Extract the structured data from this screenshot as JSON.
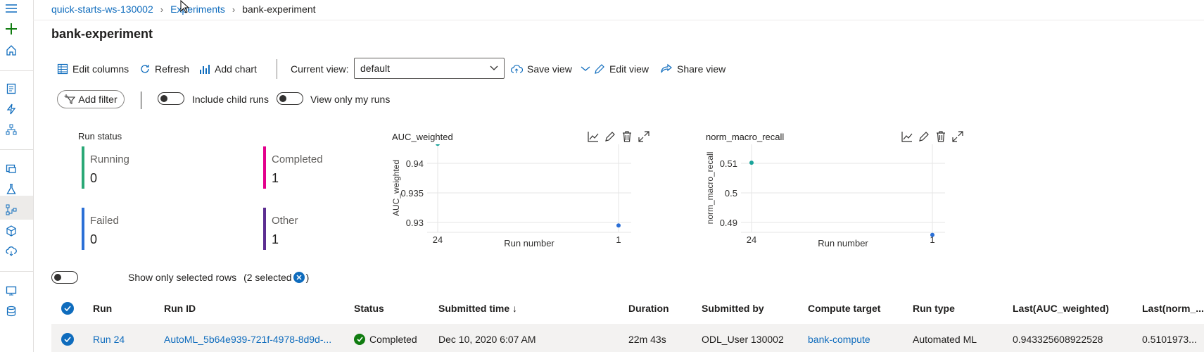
{
  "breadcrumb": {
    "workspace": "quick-starts-ws-130002",
    "section": "Experiments",
    "current": "bank-experiment"
  },
  "page": {
    "title": "bank-experiment"
  },
  "toolbar": {
    "edit_columns": "Edit columns",
    "refresh": "Refresh",
    "add_chart": "Add chart",
    "current_view_label": "Current view:",
    "current_view_value": "default",
    "save_view": "Save view",
    "edit_view": "Edit view",
    "share_view": "Share view"
  },
  "filters": {
    "add_filter": "Add filter",
    "include_child_runs": "Include child runs",
    "view_only_my_runs": "View only my runs"
  },
  "run_status": {
    "title": "Run status",
    "tiles": [
      {
        "label": "Running",
        "count": "0",
        "color": "#2aa876"
      },
      {
        "label": "Completed",
        "count": "1",
        "color": "#e3008c"
      },
      {
        "label": "Failed",
        "count": "0",
        "color": "#2b6fd6"
      },
      {
        "label": "Other",
        "count": "1",
        "color": "#5c2e91"
      }
    ]
  },
  "chart_data": [
    {
      "type": "scatter",
      "title": "AUC_weighted",
      "xlabel": "Run number",
      "ylabel": "AUC_weighted",
      "x_ticks": [
        "24",
        "1"
      ],
      "y_ticks": [
        "0.94",
        "0.935",
        "0.93"
      ],
      "series": [
        {
          "points": [
            {
              "x": "24",
              "y": 0.9433,
              "color": "#1aa39a"
            },
            {
              "x": "1",
              "y": 0.9295,
              "color": "#2b6fd6"
            }
          ]
        }
      ]
    },
    {
      "type": "scatter",
      "title": "norm_macro_recall",
      "xlabel": "Run number",
      "ylabel": "norm_macro_recall",
      "x_ticks": [
        "24",
        "1"
      ],
      "y_ticks": [
        "0.51",
        "0.5",
        "0.49"
      ],
      "series": [
        {
          "points": [
            {
              "x": "24",
              "y": 0.5102,
              "color": "#1aa39a"
            },
            {
              "x": "1",
              "y": 0.4858,
              "color": "#2b6fd6"
            }
          ]
        }
      ]
    }
  ],
  "selection": {
    "label": "Show only selected rows",
    "count_text": "(2 selected",
    "close_paren": ")"
  },
  "table": {
    "columns": [
      "Run",
      "Run ID",
      "Status",
      "Submitted time ↓",
      "Duration",
      "Submitted by",
      "Compute target",
      "Run type",
      "Last(AUC_weighted)",
      "Last(norm_..."
    ],
    "rows": [
      {
        "run": "Run 24",
        "run_id": "AutoML_5b64e939-721f-4978-8d9d-...",
        "status": "Completed",
        "submitted_time": "Dec 10, 2020 6:07 AM",
        "duration": "22m 43s",
        "submitted_by": "ODL_User 130002",
        "compute_target": "bank-compute",
        "run_type": "Automated ML",
        "last_auc": "0.943325608922528",
        "last_norm": "0.5101973..."
      }
    ]
  },
  "colors": {
    "accent": "#0f6cbd",
    "success": "#107c10"
  }
}
